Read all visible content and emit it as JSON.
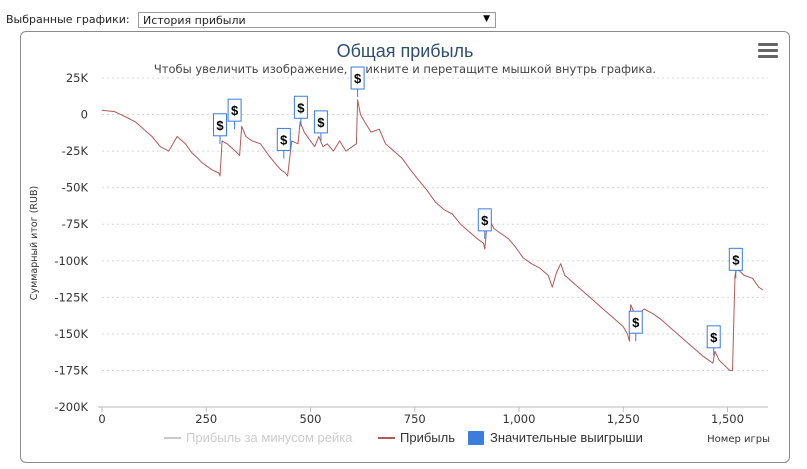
{
  "selector": {
    "label": "Выбранные графики:",
    "value": "История прибыли",
    "arrow": "▼"
  },
  "menu_icon": "hamburger-menu-icon",
  "colors": {
    "profit": "#b05a58",
    "rake_series": "#c8c8c8",
    "wins": "#3a7ddc",
    "title": "#2f4e6e",
    "grid": "#d8d8d8"
  },
  "chart_data": {
    "type": "line",
    "title": "Общая прибыль",
    "subtitle": "Чтобы увеличить изображение, кликните и перетащите мышкой внутрь графика.",
    "xlabel": "Номер игры",
    "ylabel": "Суммарный итог (RUB)",
    "xlim": [
      0,
      1590
    ],
    "ylim": [
      -200000,
      25000
    ],
    "x_ticks": [
      0,
      250,
      500,
      750,
      1000,
      1250,
      1500
    ],
    "x_tick_labels": [
      "0",
      "250",
      "500",
      "750",
      "1,000",
      "1,250",
      "1,500"
    ],
    "y_ticks": [
      25000,
      0,
      -25000,
      -50000,
      -75000,
      -100000,
      -125000,
      -150000,
      -175000,
      -200000
    ],
    "y_tick_labels": [
      "25K",
      "0",
      "-25K",
      "-50K",
      "-75K",
      "-100K",
      "-125K",
      "-150K",
      "-175K",
      "-200K"
    ],
    "grid": true,
    "legend_position": "bottom",
    "series": [
      {
        "name": "Прибыль за минусом рейка",
        "color": "#c8c8c8",
        "hidden": true,
        "x": [],
        "y": []
      },
      {
        "name": "Прибыль",
        "color": "#b05a58",
        "x": [
          0,
          30,
          45,
          60,
          80,
          100,
          120,
          140,
          160,
          180,
          200,
          215,
          230,
          240,
          250,
          265,
          280,
          283,
          288,
          300,
          320,
          330,
          335,
          345,
          360,
          380,
          400,
          420,
          430,
          440,
          445,
          455,
          470,
          475,
          485,
          500,
          510,
          520,
          530,
          540,
          555,
          570,
          585,
          600,
          610,
          613,
          620,
          630,
          645,
          665,
          680,
          700,
          720,
          740,
          760,
          780,
          800,
          820,
          840,
          860,
          880,
          900,
          915,
          918,
          925,
          940,
          960,
          975,
          990,
          1010,
          1030,
          1050,
          1070,
          1080,
          1090,
          1100,
          1110,
          1130,
          1150,
          1170,
          1190,
          1210,
          1230,
          1250,
          1260,
          1265,
          1268,
          1280,
          1300,
          1320,
          1340,
          1360,
          1380,
          1400,
          1420,
          1440,
          1455,
          1465,
          1470,
          1480,
          1495,
          1505,
          1512,
          1518,
          1522,
          1540,
          1560,
          1575,
          1585
        ],
        "y": [
          3000,
          2000,
          0,
          -2000,
          -5000,
          -10000,
          -15000,
          -22000,
          -25000,
          -15000,
          -20000,
          -26000,
          -30000,
          -33000,
          -35000,
          -38000,
          -40000,
          -42000,
          -18000,
          -20000,
          -25000,
          -28000,
          -8000,
          -15000,
          -18000,
          -20000,
          -28000,
          -35000,
          -38000,
          -40000,
          -42000,
          -18000,
          -20000,
          -5000,
          -12000,
          -18000,
          -22000,
          -15000,
          -22000,
          -20000,
          -25000,
          -18000,
          -25000,
          -22000,
          -20000,
          10000,
          0,
          -5000,
          -12000,
          -10000,
          -20000,
          -25000,
          -30000,
          -38000,
          -45000,
          -52000,
          -60000,
          -65000,
          -68000,
          -75000,
          -80000,
          -85000,
          -88000,
          -92000,
          -70000,
          -78000,
          -82000,
          -85000,
          -90000,
          -98000,
          -102000,
          -105000,
          -110000,
          -118000,
          -108000,
          -102000,
          -110000,
          -115000,
          -120000,
          -125000,
          -130000,
          -135000,
          -140000,
          -145000,
          -150000,
          -155000,
          -130000,
          -138000,
          -133000,
          -136000,
          -140000,
          -145000,
          -150000,
          -155000,
          -160000,
          -165000,
          -168000,
          -170000,
          -162000,
          -168000,
          -172000,
          -175000,
          -175000,
          -110000,
          -105000,
          -110000,
          -112000,
          -118000,
          -120000
        ]
      }
    ],
    "markers": {
      "name": "Значительные выигрыши",
      "symbol": "$",
      "color": "#3a7ddc",
      "points": [
        {
          "x": 283,
          "y": -20000
        },
        {
          "x": 318,
          "y": -10000
        },
        {
          "x": 436,
          "y": -30000
        },
        {
          "x": 477,
          "y": -8000
        },
        {
          "x": 525,
          "y": -18000
        },
        {
          "x": 613,
          "y": 12000
        },
        {
          "x": 918,
          "y": -85000
        },
        {
          "x": 1280,
          "y": -155000
        },
        {
          "x": 1467,
          "y": -165000
        },
        {
          "x": 1520,
          "y": -112000
        }
      ]
    },
    "legend": [
      {
        "label": "Прибыль за минусом рейка",
        "color": "#c8c8c8",
        "kind": "line",
        "muted": true
      },
      {
        "label": "Прибыль",
        "color": "#b05a58",
        "kind": "line",
        "muted": false
      },
      {
        "label": "Значительные выигрыши",
        "color": "#3a7ddc",
        "kind": "box",
        "muted": false
      }
    ]
  }
}
